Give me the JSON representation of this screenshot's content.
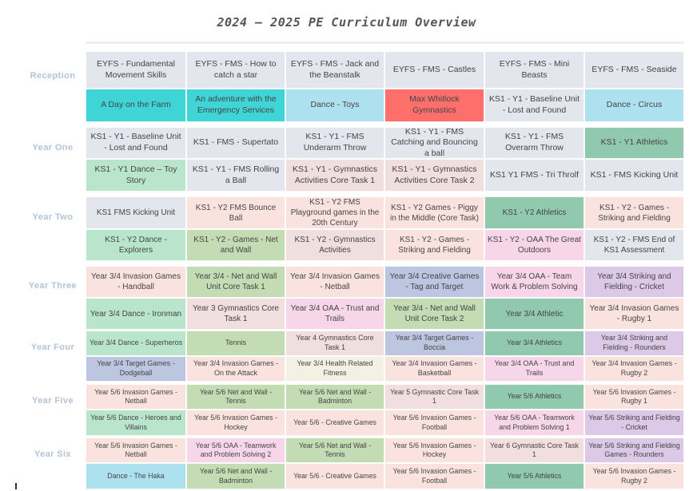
{
  "title": "2024 – 2025 PE Curriculum Overview",
  "colors": {
    "grey": "#e3e6ec",
    "teal": "#3fd4d6",
    "lblue": "#aee1ef",
    "red": "#fe6f6c",
    "mint": "#b9e5cd",
    "dgreen": "#90c9ad",
    "peach": "#fae3df",
    "olive": "#c3dcb4",
    "pink": "#f7d6ea",
    "rose": "#f1dede",
    "lav": "#dcc9e8",
    "slate": "#bcc6e0",
    "cream": "#f3f1e4"
  },
  "years": [
    {
      "label": "Reception",
      "rows": [
        [
          {
            "text": "EYFS - Fundamental Movement Skills",
            "color": "grey"
          },
          {
            "text": "EYFS - FMS - How to catch a star",
            "color": "grey"
          },
          {
            "text": "EYFS - FMS - Jack and the Beanstalk",
            "color": "grey"
          },
          {
            "text": "EYFS - FMS - Castles",
            "color": "grey"
          },
          {
            "text": "EYFS - FMS - Mini Beasts",
            "color": "grey"
          },
          {
            "text": "EYFS - FMS - Seaside",
            "color": "grey"
          }
        ],
        [
          {
            "text": "A Day on the Farm",
            "color": "teal"
          },
          {
            "text": "An adventure with the Emergency Services",
            "color": "teal"
          },
          {
            "text": "Dance - Toys",
            "color": "lblue"
          },
          {
            "text": "Max Whitlock Gymnastics",
            "color": "red"
          },
          {
            "text": "KS1 - Y1 - Baseline Unit - Lost and Found",
            "color": "grey"
          },
          {
            "text": "Dance - Circus",
            "color": "lblue"
          }
        ]
      ]
    },
    {
      "label": "Year One",
      "rows": [
        [
          {
            "text": "KS1 - Y1 - Baseline Unit - Lost and Found",
            "color": "grey"
          },
          {
            "text": "KS1 - FMS - Supertato",
            "color": "grey"
          },
          {
            "text": "KS1 - Y1 - FMS Underarm Throw",
            "color": "grey"
          },
          {
            "text": "KS1 - Y1 - FMS Catching and Bouncing a ball",
            "color": "grey"
          },
          {
            "text": "KS1 - Y1 - FMS Overarm Throw",
            "color": "grey"
          },
          {
            "text": "KS1 - Y1 Athletics",
            "color": "dgreen"
          }
        ],
        [
          {
            "text": "KS1 - Y1 Dance – Toy Story",
            "color": "mint"
          },
          {
            "text": "KS1 - Y1 - FMS Rolling a Ball",
            "color": "grey"
          },
          {
            "text": "KS1 - Y1 - Gymnastics Activities Core Task 1",
            "color": "rose"
          },
          {
            "text": "KS1 - Y1 - Gymnastics Activities Core Task 2",
            "color": "rose"
          },
          {
            "text": "KS1 Y1 FMS - Tri Throlf",
            "color": "grey"
          },
          {
            "text": "KS1 - FMS Kicking Unit",
            "color": "grey"
          }
        ]
      ]
    },
    {
      "label": "Year Two",
      "rows": [
        [
          {
            "text": "KS1 FMS Kicking Unit",
            "color": "grey"
          },
          {
            "text": "KS1 - Y2 FMS Bounce Ball",
            "color": "peach"
          },
          {
            "text": "KS1 - Y2 FMS Playground games in the 20th Century",
            "color": "peach"
          },
          {
            "text": "KS1 - Y2 Games - Piggy in the Middle (Core Task)",
            "color": "peach"
          },
          {
            "text": "KS1 - Y2 Athletics",
            "color": "dgreen"
          },
          {
            "text": "KS1 - Y2 - Games - Striking and Fielding",
            "color": "peach"
          }
        ],
        [
          {
            "text": "KS1 - Y2 Dance - Explorers",
            "color": "mint"
          },
          {
            "text": "KS1 - Y2 - Games - Net and Wall",
            "color": "olive"
          },
          {
            "text": "KS1 - Y2 - Gymnastics Activities",
            "color": "rose"
          },
          {
            "text": "KS1 - Y2 - Games - Striking and Fielding",
            "color": "peach"
          },
          {
            "text": "KS1 - Y2 - OAA The Great Outdoors",
            "color": "pink"
          },
          {
            "text": "KS1 - Y2 - FMS End of KS1 Assessment",
            "color": "grey"
          }
        ]
      ]
    },
    {
      "label": "Year Three",
      "rows": [
        [
          {
            "text": "Year 3/4 Invasion Games - Handball",
            "color": "peach"
          },
          {
            "text": "Year 3/4 - Net and Wall Unit Core Task 1",
            "color": "olive"
          },
          {
            "text": "Year 3/4 Invasion Games - Netball",
            "color": "peach"
          },
          {
            "text": "Year 3/4 Creative Games - Tag and Target",
            "color": "slate"
          },
          {
            "text": "Year 3/4 OAA - Team Work & Problem Solving",
            "color": "pink"
          },
          {
            "text": "Year 3/4 Striking and Fielding - Cricket",
            "color": "lav"
          }
        ],
        [
          {
            "text": "Year 3/4 Dance - Ironman",
            "color": "mint"
          },
          {
            "text": "Year 3 Gymnastics Core Task 1",
            "color": "rose"
          },
          {
            "text": "Year 3/4 OAA - Trust and Trails",
            "color": "pink"
          },
          {
            "text": "Year 3/4 - Net and Wall Unit Core Task 2",
            "color": "olive"
          },
          {
            "text": "Year 3/4 Athletic",
            "color": "dgreen"
          },
          {
            "text": "Year 3/4 Invasion Games - Rugby 1",
            "color": "peach"
          }
        ]
      ]
    },
    {
      "label": "Year Four",
      "rows": [
        [
          {
            "text": "Year 3/4 Dance - Superheros",
            "color": "mint"
          },
          {
            "text": "Tennis",
            "color": "olive"
          },
          {
            "text": "Year 4 Gymnastics Core Task 1",
            "color": "rose"
          },
          {
            "text": "Year 3/4 Target Games - Boccia",
            "color": "slate"
          },
          {
            "text": "Year 3/4 Athletics",
            "color": "dgreen"
          },
          {
            "text": "Year 3/4 Striking and Fielding - Rounders",
            "color": "lav"
          }
        ],
        [
          {
            "text": "Year 3/4 Target Games - Dodgeball",
            "color": "slate"
          },
          {
            "text": "Year 3/4 Invasion Games - On the Attack",
            "color": "peach"
          },
          {
            "text": "Year 3/4 Health Related Fitness",
            "color": "cream"
          },
          {
            "text": "Year 3/4 Invasion Games - Basketball",
            "color": "peach"
          },
          {
            "text": "Year 3/4 OAA - Trust and Trails",
            "color": "pink"
          },
          {
            "text": "Year 3/4 Invasion Games - Rugby 2",
            "color": "peach"
          }
        ]
      ]
    },
    {
      "label": "Year Five",
      "rows": [
        [
          {
            "text": "Year 5/6 Invasion Games - Netball",
            "color": "peach"
          },
          {
            "text": "Year 5/6 Net and Wall - Tennis",
            "color": "olive"
          },
          {
            "text": "Year 5/6 Net and Wall - Badminton",
            "color": "olive"
          },
          {
            "text": "Year 5 Gymnastic Core Task 1",
            "color": "rose"
          },
          {
            "text": "Year 5/6 Athletics",
            "color": "dgreen"
          },
          {
            "text": "Year 5/6 Invasion Games - Rugby 1",
            "color": "peach"
          }
        ],
        [
          {
            "text": "Year 5/6 Dance - Heroes and Villains",
            "color": "mint"
          },
          {
            "text": "Year 5/6 Invasion Games - Hockey",
            "color": "peach"
          },
          {
            "text": "Year 5/6 - Creative Games",
            "color": "peach"
          },
          {
            "text": "Year 5/6 Invasion Games - Football",
            "color": "peach"
          },
          {
            "text": "Year 5/6 OAA - Teamwork and Problem Solving 1",
            "color": "pink"
          },
          {
            "text": "Year 5/6 Striking and Fielding - Cricket",
            "color": "lav"
          }
        ]
      ]
    },
    {
      "label": "Year Six",
      "rows": [
        [
          {
            "text": "Year 5/6 Invasion Games - Netball",
            "color": "peach"
          },
          {
            "text": "Year 5/6 OAA - Teamwork and Problem Solving 2",
            "color": "pink"
          },
          {
            "text": "Year 5/6 Net and Wall - Tennis",
            "color": "olive"
          },
          {
            "text": "Year 5/6 Invasion Games - Hockey",
            "color": "peach"
          },
          {
            "text": "Year 6 Gymnastic Core Task 1",
            "color": "rose"
          },
          {
            "text": "Year 5/6 Striking and Fielding Games - Rounders",
            "color": "lav"
          }
        ],
        [
          {
            "text": "Dance - The Haka",
            "color": "lblue"
          },
          {
            "text": "Year 5/6 Net and Wall - Badminton",
            "color": "olive"
          },
          {
            "text": "Year 5/6 - Creative Games",
            "color": "peach"
          },
          {
            "text": "Year 5/6 Invasion Games - Football",
            "color": "peach"
          },
          {
            "text": "Year 5/6 Athletics",
            "color": "dgreen"
          },
          {
            "text": "Year 5/6 Invasion Games - Rugby 2",
            "color": "peach"
          }
        ]
      ]
    }
  ]
}
